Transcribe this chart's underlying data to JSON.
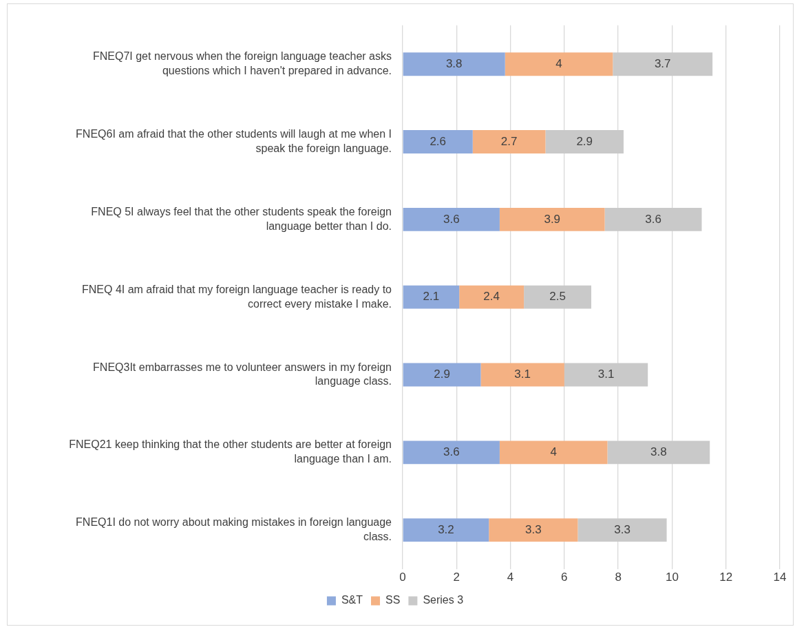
{
  "chart_data": {
    "type": "bar",
    "orientation": "horizontal",
    "stacked": true,
    "categories": [
      "FNEQ7I get nervous when the foreign language teacher asks questions which I haven't prepared in advance.",
      "FNEQ6I am afraid that the other students will laugh at me when I speak the foreign language.",
      "FNEQ 5I always feel that the other students speak the foreign language better than I do.",
      "FNEQ 4I am afraid that my foreign language teacher is ready to correct every mistake I make.",
      "FNEQ3It embarrasses me to volunteer answers in my foreign language class.",
      "FNEQ21 keep thinking that the other students are better at foreign language than I am.",
      "FNEQ1I do not worry about making mistakes in foreign language class."
    ],
    "series": [
      {
        "name": "S&T",
        "color": "#8faadc",
        "values": [
          3.8,
          2.6,
          3.6,
          2.1,
          2.9,
          3.6,
          3.2
        ]
      },
      {
        "name": "SS",
        "color": "#f4b183",
        "values": [
          4,
          2.7,
          3.9,
          2.4,
          3.1,
          4,
          3.3
        ]
      },
      {
        "name": "Series 3",
        "color": "#c9c9c9",
        "values": [
          3.7,
          2.9,
          3.6,
          2.5,
          3.1,
          3.8,
          3.3
        ]
      }
    ],
    "xlim": [
      0,
      14
    ],
    "xticks": [
      0,
      2,
      4,
      6,
      8,
      10,
      12,
      14
    ],
    "grid": "x",
    "legend": "bottom",
    "data_labels": true
  }
}
